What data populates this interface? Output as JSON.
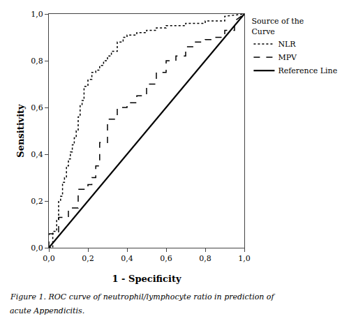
{
  "chart_data": {
    "type": "line",
    "xlabel": "1 - Specificity",
    "ylabel": "Sensitivity",
    "xlim": [
      0.0,
      1.0
    ],
    "ylim": [
      0.0,
      1.0
    ],
    "xticks": [
      {
        "value": 0.0,
        "label": "0,0"
      },
      {
        "value": 0.2,
        "label": "0,2"
      },
      {
        "value": 0.4,
        "label": "0,4"
      },
      {
        "value": 0.6,
        "label": "0,6"
      },
      {
        "value": 0.8,
        "label": "0,8"
      },
      {
        "value": 1.0,
        "label": "1,0"
      }
    ],
    "yticks": [
      {
        "value": 0.0,
        "label": "0,0"
      },
      {
        "value": 0.2,
        "label": "0,2"
      },
      {
        "value": 0.4,
        "label": "0,4"
      },
      {
        "value": 0.6,
        "label": "0,6"
      },
      {
        "value": 0.8,
        "label": "0,8"
      },
      {
        "value": 1.0,
        "label": "1,0"
      }
    ],
    "grid": false,
    "legend": "right",
    "legend_title": "Source of the\nCurve",
    "annotations": [
      "Figure 1. ROC curve of neutrophil/lymphocyte ratio in prediction of",
      "acute Appendicitis."
    ],
    "series": [
      {
        "name": "NLR",
        "color": "#000000",
        "line_style": "dotted",
        "x": [
          0.0,
          0.02,
          0.02,
          0.04,
          0.04,
          0.05,
          0.05,
          0.06,
          0.06,
          0.07,
          0.07,
          0.08,
          0.08,
          0.09,
          0.09,
          0.1,
          0.1,
          0.11,
          0.11,
          0.12,
          0.12,
          0.13,
          0.13,
          0.14,
          0.14,
          0.15,
          0.15,
          0.16,
          0.16,
          0.17,
          0.17,
          0.18,
          0.18,
          0.2,
          0.2,
          0.22,
          0.22,
          0.24,
          0.24,
          0.26,
          0.26,
          0.28,
          0.28,
          0.3,
          0.3,
          0.32,
          0.32,
          0.35,
          0.35,
          0.38,
          0.38,
          0.4,
          0.4,
          0.45,
          0.45,
          0.5,
          0.5,
          0.55,
          0.55,
          0.6,
          0.6,
          0.7,
          0.7,
          0.8,
          0.8,
          0.9,
          0.9,
          1.0
        ],
        "values": [
          0.0,
          0.0,
          0.07,
          0.07,
          0.12,
          0.12,
          0.2,
          0.2,
          0.22,
          0.22,
          0.28,
          0.28,
          0.3,
          0.3,
          0.35,
          0.35,
          0.38,
          0.38,
          0.41,
          0.41,
          0.44,
          0.44,
          0.47,
          0.47,
          0.5,
          0.5,
          0.56,
          0.56,
          0.61,
          0.61,
          0.63,
          0.63,
          0.69,
          0.69,
          0.72,
          0.72,
          0.75,
          0.75,
          0.76,
          0.76,
          0.78,
          0.78,
          0.8,
          0.8,
          0.82,
          0.82,
          0.84,
          0.84,
          0.88,
          0.88,
          0.9,
          0.9,
          0.91,
          0.91,
          0.92,
          0.92,
          0.93,
          0.93,
          0.94,
          0.94,
          0.95,
          0.95,
          0.96,
          0.96,
          0.97,
          0.97,
          0.99,
          1.0
        ]
      },
      {
        "name": "MPV",
        "color": "#000000",
        "line_style": "dashed",
        "x": [
          0.0,
          0.0,
          0.05,
          0.05,
          0.1,
          0.1,
          0.15,
          0.15,
          0.2,
          0.2,
          0.22,
          0.22,
          0.24,
          0.24,
          0.26,
          0.26,
          0.3,
          0.3,
          0.35,
          0.35,
          0.4,
          0.4,
          0.45,
          0.45,
          0.5,
          0.5,
          0.55,
          0.55,
          0.6,
          0.6,
          0.65,
          0.65,
          0.7,
          0.7,
          0.75,
          0.75,
          0.8,
          0.8,
          0.85,
          0.85,
          0.9,
          0.9,
          0.95,
          0.95,
          1.0
        ],
        "values": [
          0.0,
          0.06,
          0.06,
          0.13,
          0.13,
          0.17,
          0.17,
          0.25,
          0.25,
          0.27,
          0.27,
          0.3,
          0.3,
          0.35,
          0.35,
          0.45,
          0.45,
          0.55,
          0.55,
          0.6,
          0.6,
          0.62,
          0.62,
          0.65,
          0.65,
          0.7,
          0.7,
          0.75,
          0.75,
          0.8,
          0.8,
          0.82,
          0.82,
          0.86,
          0.86,
          0.88,
          0.88,
          0.89,
          0.89,
          0.9,
          0.9,
          0.93,
          0.93,
          0.97,
          1.0
        ]
      },
      {
        "name": "Reference Line",
        "color": "#000000",
        "line_style": "solid",
        "x": [
          0,
          1
        ],
        "values": [
          0,
          1
        ]
      }
    ]
  }
}
